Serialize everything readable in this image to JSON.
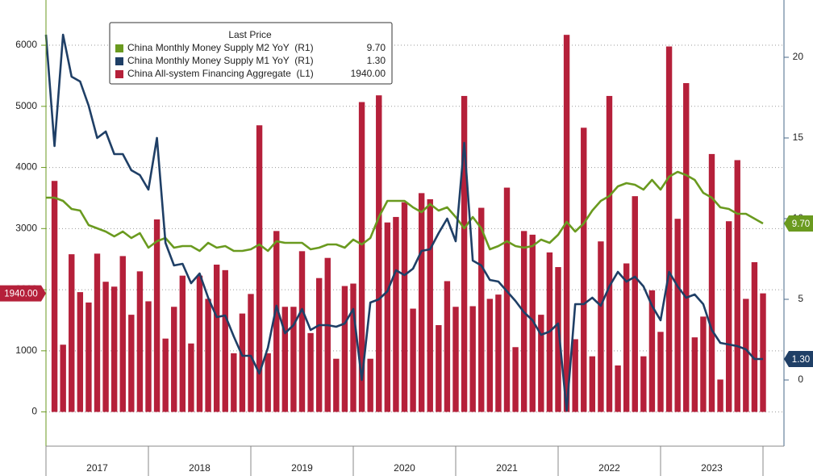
{
  "chart_data": {
    "type": "bar_line",
    "legend_title": "Last Price",
    "categories": [
      null,
      null,
      null,
      null,
      null,
      null,
      null,
      null,
      null,
      null,
      null,
      null,
      null,
      null,
      null,
      null,
      null,
      null,
      null,
      null,
      null,
      null,
      null,
      null,
      null,
      null,
      null,
      null,
      null,
      null,
      null,
      null,
      null,
      null,
      null,
      null,
      null,
      null,
      null,
      null,
      null,
      null,
      null,
      null,
      null,
      null,
      null,
      null,
      null,
      null,
      null,
      null,
      null,
      null,
      null,
      null,
      null,
      null,
      null,
      null,
      null,
      null,
      null,
      null,
      null,
      null,
      null,
      null,
      null,
      null,
      null,
      null,
      null,
      null,
      null,
      null,
      null,
      null,
      null,
      null,
      null,
      null,
      null,
      null,
      null
    ],
    "year_labels": [
      "2017",
      "2018",
      "2019",
      "2020",
      "2021",
      "2022",
      "2023"
    ],
    "ylim": [
      -560,
      6740
    ],
    "yticks": [
      0,
      1000,
      2000,
      3000,
      4000,
      5000,
      6000
    ],
    "y2lim": [
      -4.1,
      23.55
    ],
    "y2ticks": [
      0,
      5,
      10,
      15,
      20
    ],
    "grid": true,
    "series": [
      {
        "name": "China Monthly Money Supply M2 YoY  (R1)",
        "color": "#6a9a1f",
        "kind": "line",
        "axis": "y2",
        "last_label": "9.70",
        "values": [
          11.3,
          11.3,
          11.1,
          10.6,
          10.5,
          9.6,
          9.4,
          9.2,
          8.9,
          9.2,
          8.8,
          9.1,
          8.2,
          8.6,
          8.8,
          8.2,
          8.3,
          8.3,
          8.0,
          8.5,
          8.2,
          8.3,
          8.0,
          8.0,
          8.1,
          8.4,
          8.0,
          8.6,
          8.5,
          8.5,
          8.5,
          8.1,
          8.2,
          8.4,
          8.4,
          8.2,
          8.7,
          8.4,
          8.8,
          10.1,
          11.1,
          11.1,
          11.1,
          10.7,
          10.4,
          10.9,
          10.5,
          10.7,
          10.1,
          9.4,
          10.1,
          9.4,
          8.1,
          8.3,
          8.6,
          8.3,
          8.2,
          8.3,
          8.7,
          8.5,
          9.0,
          9.8,
          9.2,
          9.7,
          10.5,
          11.1,
          11.4,
          12.0,
          12.2,
          12.1,
          11.8,
          12.4,
          11.8,
          12.6,
          12.9,
          12.7,
          12.4,
          11.6,
          11.3,
          10.7,
          10.6,
          10.3,
          10.3,
          10.0,
          9.7
        ]
      },
      {
        "name": "China Monthly Money Supply M1 YoY  (R1)",
        "color": "#1f3f66",
        "kind": "line",
        "axis": "y2",
        "last_label": "1.30",
        "values": [
          21.4,
          14.5,
          21.4,
          18.8,
          18.5,
          17.0,
          15.0,
          15.4,
          14.0,
          14.0,
          13.0,
          12.7,
          11.8,
          15.0,
          8.5,
          7.1,
          7.2,
          6.0,
          6.6,
          5.1,
          3.9,
          4.0,
          2.7,
          1.5,
          1.5,
          0.4,
          2.0,
          4.6,
          2.9,
          3.4,
          4.4,
          3.1,
          3.4,
          3.4,
          3.3,
          3.5,
          4.4,
          0.0,
          4.8,
          5.0,
          5.5,
          6.8,
          6.5,
          6.9,
          8.0,
          8.1,
          9.1,
          10.0,
          8.6,
          14.7,
          7.4,
          7.1,
          6.2,
          6.1,
          5.5,
          4.9,
          4.2,
          3.7,
          2.8,
          3.0,
          3.5,
          -1.9,
          4.7,
          4.7,
          5.1,
          4.6,
          5.8,
          6.7,
          6.1,
          6.4,
          5.8,
          4.6,
          3.7,
          6.7,
          5.8,
          5.1,
          5.3,
          4.7,
          3.1,
          2.3,
          2.2,
          2.1,
          1.9,
          1.3,
          1.3
        ]
      },
      {
        "name": "China All-system Financing Aggregate  (L1)",
        "color": "#b5203a",
        "kind": "bar",
        "axis": "y",
        "last_label": "1940.00",
        "values": [
          null,
          3780,
          1100,
          2580,
          1960,
          1790,
          2590,
          2130,
          2050,
          2550,
          1590,
          2300,
          1810,
          3150,
          1200,
          1720,
          2230,
          1120,
          2230,
          1850,
          2410,
          2320,
          960,
          1610,
          1930,
          4690,
          960,
          2960,
          1720,
          1720,
          2630,
          1290,
          2190,
          2520,
          870,
          2060,
          2100,
          5070,
          870,
          5180,
          3100,
          3190,
          3430,
          1690,
          3580,
          3480,
          1420,
          2140,
          1720,
          5170,
          1730,
          3340,
          1850,
          1920,
          3670,
          1060,
          2960,
          2900,
          1590,
          2610,
          2370,
          6170,
          1190,
          4650,
          910,
          2790,
          5170,
          760,
          2430,
          3530,
          910,
          1990,
          1310,
          5980,
          3160,
          5380,
          1220,
          1560,
          4220,
          530,
          3120,
          4120,
          1850,
          2450,
          1940
        ]
      }
    ]
  }
}
